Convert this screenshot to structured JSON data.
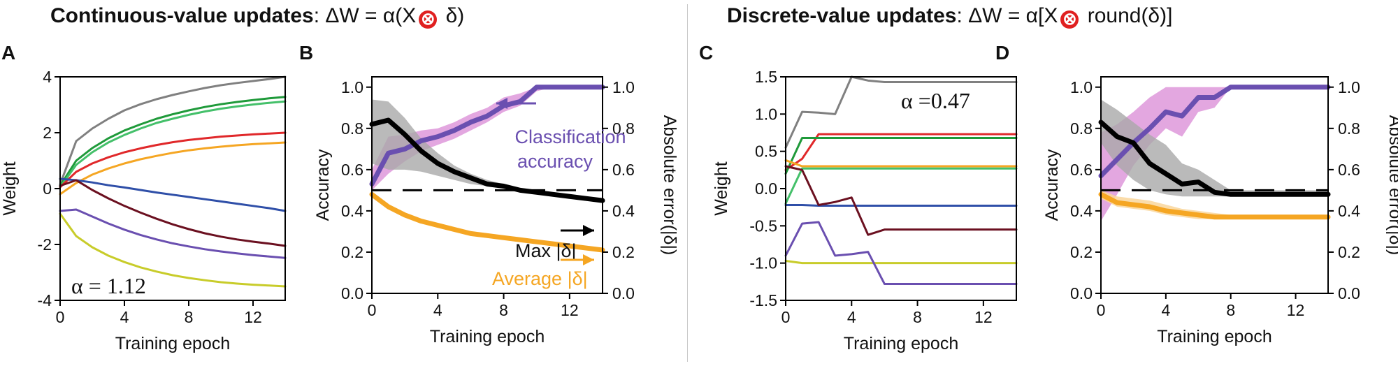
{
  "headers": {
    "left": {
      "bold": "Continuous-value updates",
      "formula_prefix": ": ΔW = α(X",
      "symbol": "⊗",
      "formula_suffix": " δ)"
    },
    "right": {
      "bold": "Discrete-value updates",
      "formula_prefix": ": ΔW = α[X",
      "symbol": "⊗",
      "formula_suffix": " round(δ)]"
    }
  },
  "colors": {
    "gray": "#808080",
    "green": "#1f9a3a",
    "lightgreen": "#44c06a",
    "red": "#e0282a",
    "orange": "#f5a623",
    "blue": "#2f4fa8",
    "darkred": "#6b1020",
    "purple": "#6a4fb0",
    "yellow": "#c8cc2a",
    "black": "#000000",
    "pink": "#d98ad6",
    "grayfill": "#a9a9a9",
    "orangefill": "#f9d69b"
  },
  "chart_data": [
    {
      "panel": "A",
      "type": "line",
      "xlabel": "Training epoch",
      "ylabel": "Weight",
      "xlim": [
        0,
        14
      ],
      "ylim": [
        -4,
        4
      ],
      "xticks": [
        0,
        4,
        8,
        12
      ],
      "yticks": [
        -4,
        -2,
        0,
        2,
        4
      ],
      "annotation": "α = 1.12",
      "x": [
        0,
        1,
        2,
        3,
        4,
        5,
        6,
        7,
        8,
        9,
        10,
        11,
        12,
        13,
        14
      ],
      "series": [
        {
          "name": "gray",
          "color": "gray",
          "values": [
            0.15,
            1.7,
            2.15,
            2.5,
            2.8,
            3.02,
            3.2,
            3.35,
            3.48,
            3.6,
            3.7,
            3.78,
            3.85,
            3.92,
            4.0
          ]
        },
        {
          "name": "green",
          "color": "green",
          "values": [
            0.1,
            1.0,
            1.45,
            1.8,
            2.08,
            2.3,
            2.5,
            2.66,
            2.8,
            2.92,
            3.02,
            3.1,
            3.17,
            3.23,
            3.28
          ]
        },
        {
          "name": "lightgreen",
          "color": "lightgreen",
          "values": [
            0.05,
            0.85,
            1.3,
            1.65,
            1.92,
            2.15,
            2.35,
            2.5,
            2.64,
            2.76,
            2.86,
            2.94,
            3.01,
            3.07,
            3.12
          ]
        },
        {
          "name": "red",
          "color": "red",
          "values": [
            0.05,
            0.6,
            0.9,
            1.12,
            1.3,
            1.44,
            1.56,
            1.66,
            1.74,
            1.8,
            1.86,
            1.9,
            1.94,
            1.97,
            2.0
          ]
        },
        {
          "name": "orange",
          "color": "orange",
          "values": [
            -0.2,
            0.2,
            0.5,
            0.72,
            0.9,
            1.05,
            1.17,
            1.28,
            1.37,
            1.44,
            1.5,
            1.55,
            1.59,
            1.62,
            1.65
          ]
        },
        {
          "name": "blue",
          "color": "blue",
          "values": [
            0.35,
            0.3,
            0.22,
            0.12,
            0.04,
            -0.05,
            -0.14,
            -0.22,
            -0.3,
            -0.38,
            -0.46,
            -0.54,
            -0.62,
            -0.7,
            -0.8
          ]
        },
        {
          "name": "darkred",
          "color": "darkred",
          "values": [
            0.1,
            0.3,
            -0.05,
            -0.35,
            -0.62,
            -0.86,
            -1.08,
            -1.28,
            -1.45,
            -1.6,
            -1.72,
            -1.82,
            -1.9,
            -1.97,
            -2.05
          ]
        },
        {
          "name": "purple",
          "color": "purple",
          "values": [
            -0.8,
            -0.75,
            -1.0,
            -1.25,
            -1.47,
            -1.66,
            -1.82,
            -1.96,
            -2.07,
            -2.17,
            -2.25,
            -2.32,
            -2.38,
            -2.43,
            -2.48
          ]
        },
        {
          "name": "yellow",
          "color": "yellow",
          "values": [
            -0.9,
            -1.7,
            -2.1,
            -2.4,
            -2.63,
            -2.82,
            -2.97,
            -3.1,
            -3.2,
            -3.28,
            -3.35,
            -3.4,
            -3.44,
            -3.47,
            -3.5
          ]
        }
      ]
    },
    {
      "panel": "B",
      "type": "line",
      "xlabel": "Training epoch",
      "ylabel": "Accuracy",
      "ylabel_right": "Absolute error(|δ|)",
      "xlim": [
        0,
        14
      ],
      "ylim": [
        0,
        1.05
      ],
      "xticks": [
        0,
        4,
        8,
        12
      ],
      "yticks": [
        0.0,
        0.2,
        0.4,
        0.6,
        0.8,
        1.0
      ],
      "yticklabels": [
        "0.0",
        "0.2",
        "0.4",
        "0.6",
        "0.8",
        "1.0"
      ],
      "annotations": {
        "classification": [
          "Classification",
          "accuracy"
        ],
        "max": "Max |δ|",
        "average": "Average |δ|"
      },
      "x": [
        0,
        1,
        2,
        3,
        4,
        5,
        6,
        7,
        8,
        9,
        10,
        11,
        12,
        13,
        14
      ],
      "dashed_level": 0.5,
      "series": [
        {
          "name": "Classification accuracy",
          "color": "purple",
          "values": [
            0.53,
            0.68,
            0.7,
            0.74,
            0.76,
            0.79,
            0.83,
            0.86,
            0.91,
            0.93,
            1.0,
            1.0,
            1.0,
            1.0,
            1.0
          ],
          "band_low": [
            0.5,
            0.58,
            0.64,
            0.69,
            0.72,
            0.75,
            0.79,
            0.83,
            0.88,
            0.91,
            0.98,
            1.0,
            1.0,
            1.0,
            1.0
          ],
          "band_high": [
            0.6,
            0.76,
            0.77,
            0.79,
            0.8,
            0.83,
            0.87,
            0.9,
            0.95,
            0.97,
            1.0,
            1.0,
            1.0,
            1.0,
            1.0
          ]
        },
        {
          "name": "Max |δ|",
          "color": "black",
          "values": [
            0.82,
            0.84,
            0.77,
            0.69,
            0.63,
            0.59,
            0.56,
            0.53,
            0.52,
            0.5,
            0.49,
            0.48,
            0.47,
            0.46,
            0.45
          ],
          "band_low": [
            0.63,
            0.6,
            0.6,
            0.59,
            0.57,
            0.55,
            0.53,
            0.52,
            0.51,
            0.5,
            0.49,
            0.48,
            0.47,
            0.46,
            0.45
          ],
          "band_high": [
            0.94,
            0.93,
            0.85,
            0.75,
            0.68,
            0.62,
            0.58,
            0.55,
            0.53,
            0.51,
            0.5,
            0.49,
            0.48,
            0.47,
            0.46
          ]
        },
        {
          "name": "Average |δ|",
          "color": "orange",
          "values": [
            0.48,
            0.42,
            0.38,
            0.35,
            0.33,
            0.31,
            0.29,
            0.28,
            0.27,
            0.26,
            0.25,
            0.24,
            0.23,
            0.22,
            0.21
          ]
        }
      ]
    },
    {
      "panel": "C",
      "type": "line",
      "xlabel": "Training epoch",
      "ylabel": "Weight",
      "xlim": [
        0,
        14
      ],
      "ylim": [
        -1.5,
        1.5
      ],
      "xticks": [
        0,
        4,
        8,
        12
      ],
      "yticks": [
        -1.5,
        -1.0,
        -0.5,
        0.0,
        0.5,
        1.0,
        1.5
      ],
      "yticklabels": [
        "-1.5",
        "-1.0",
        "-0.5",
        "0.0",
        "0.5",
        "1.0",
        "1.5"
      ],
      "annotation": "α =0.47",
      "x": [
        0,
        1,
        2,
        3,
        4,
        5,
        6,
        7,
        8,
        9,
        10,
        11,
        12,
        13,
        14
      ],
      "series": [
        {
          "name": "gray",
          "color": "gray",
          "values": [
            0.55,
            1.03,
            1.02,
            1.0,
            1.5,
            1.45,
            1.43,
            1.43,
            1.43,
            1.43,
            1.43,
            1.43,
            1.43,
            1.43,
            1.43
          ]
        },
        {
          "name": "red",
          "color": "red",
          "values": [
            0.25,
            0.4,
            0.73,
            0.73,
            0.73,
            0.73,
            0.73,
            0.73,
            0.73,
            0.73,
            0.73,
            0.73,
            0.73,
            0.73,
            0.73
          ]
        },
        {
          "name": "green",
          "color": "green",
          "values": [
            0.2,
            0.68,
            0.68,
            0.68,
            0.68,
            0.68,
            0.68,
            0.68,
            0.68,
            0.68,
            0.68,
            0.68,
            0.68,
            0.68,
            0.68
          ]
        },
        {
          "name": "orange",
          "color": "orange",
          "values": [
            0.38,
            0.3,
            0.3,
            0.3,
            0.3,
            0.3,
            0.3,
            0.3,
            0.3,
            0.3,
            0.3,
            0.3,
            0.3,
            0.3,
            0.3
          ]
        },
        {
          "name": "lightgreen",
          "color": "lightgreen",
          "values": [
            -0.2,
            0.27,
            0.27,
            0.27,
            0.27,
            0.27,
            0.27,
            0.27,
            0.27,
            0.27,
            0.27,
            0.27,
            0.27,
            0.27,
            0.27
          ]
        },
        {
          "name": "blue",
          "color": "blue",
          "values": [
            -0.22,
            -0.22,
            -0.23,
            -0.23,
            -0.23,
            -0.23,
            -0.23,
            -0.23,
            -0.23,
            -0.23,
            -0.23,
            -0.23,
            -0.23,
            -0.23,
            -0.23
          ]
        },
        {
          "name": "darkred",
          "color": "darkred",
          "values": [
            0.3,
            0.25,
            -0.22,
            -0.18,
            -0.12,
            -0.62,
            -0.55,
            -0.55,
            -0.55,
            -0.55,
            -0.55,
            -0.55,
            -0.55,
            -0.55,
            -0.55
          ]
        },
        {
          "name": "yellow",
          "color": "yellow",
          "values": [
            -0.97,
            -1.0,
            -1.0,
            -1.0,
            -1.0,
            -1.0,
            -1.0,
            -1.0,
            -1.0,
            -1.0,
            -1.0,
            -1.0,
            -1.0,
            -1.0,
            -1.0
          ]
        },
        {
          "name": "purple",
          "color": "purple",
          "values": [
            -0.9,
            -0.47,
            -0.45,
            -0.9,
            -0.88,
            -0.85,
            -1.28,
            -1.28,
            -1.28,
            -1.28,
            -1.28,
            -1.28,
            -1.28,
            -1.28,
            -1.28
          ]
        }
      ]
    },
    {
      "panel": "D",
      "type": "line",
      "xlabel": "Training epoch",
      "ylabel": "Accuracy",
      "ylabel_right": "Absolute error(|δ|)",
      "xlim": [
        0,
        14
      ],
      "ylim": [
        0,
        1.05
      ],
      "xticks": [
        0,
        4,
        8,
        12
      ],
      "yticks": [
        0.0,
        0.2,
        0.4,
        0.6,
        0.8,
        1.0
      ],
      "yticklabels": [
        "0.0",
        "0.2",
        "0.4",
        "0.6",
        "0.8",
        "1.0"
      ],
      "x": [
        0,
        1,
        2,
        3,
        4,
        5,
        6,
        7,
        8,
        9,
        10,
        11,
        12,
        13,
        14
      ],
      "dashed_level": 0.5,
      "series": [
        {
          "name": "Classification accuracy",
          "color": "purple",
          "values": [
            0.57,
            0.65,
            0.73,
            0.8,
            0.88,
            0.86,
            0.95,
            0.95,
            1.0,
            1.0,
            1.0,
            1.0,
            1.0,
            1.0,
            1.0
          ],
          "band_low": [
            0.35,
            0.48,
            0.62,
            0.72,
            0.8,
            0.76,
            0.88,
            0.9,
            1.0,
            1.0,
            1.0,
            1.0,
            1.0,
            1.0,
            1.0
          ],
          "band_high": [
            0.78,
            0.82,
            0.88,
            0.95,
            1.0,
            1.0,
            1.0,
            1.0,
            1.0,
            1.0,
            1.0,
            1.0,
            1.0,
            1.0,
            1.0
          ]
        },
        {
          "name": "Max |δ|",
          "color": "black",
          "values": [
            0.83,
            0.76,
            0.73,
            0.63,
            0.58,
            0.53,
            0.54,
            0.49,
            0.48,
            0.48,
            0.48,
            0.48,
            0.48,
            0.48,
            0.48
          ],
          "band_low": [
            0.73,
            0.62,
            0.55,
            0.5,
            0.48,
            0.47,
            0.47,
            0.47,
            0.47,
            0.47,
            0.47,
            0.47,
            0.47,
            0.47,
            0.47
          ],
          "band_high": [
            0.94,
            0.89,
            0.83,
            0.77,
            0.72,
            0.63,
            0.6,
            0.55,
            0.5,
            0.5,
            0.5,
            0.5,
            0.5,
            0.5,
            0.5
          ]
        },
        {
          "name": "Average |δ|",
          "color": "orange",
          "values": [
            0.48,
            0.44,
            0.43,
            0.42,
            0.4,
            0.39,
            0.38,
            0.37,
            0.37,
            0.37,
            0.37,
            0.37,
            0.37,
            0.37,
            0.37
          ],
          "band_low": [
            0.46,
            0.42,
            0.41,
            0.4,
            0.38,
            0.37,
            0.36,
            0.36,
            0.36,
            0.36,
            0.36,
            0.36,
            0.36,
            0.36,
            0.36
          ],
          "band_high": [
            0.5,
            0.47,
            0.46,
            0.45,
            0.43,
            0.41,
            0.4,
            0.39,
            0.38,
            0.38,
            0.38,
            0.38,
            0.38,
            0.38,
            0.38
          ]
        }
      ]
    }
  ]
}
